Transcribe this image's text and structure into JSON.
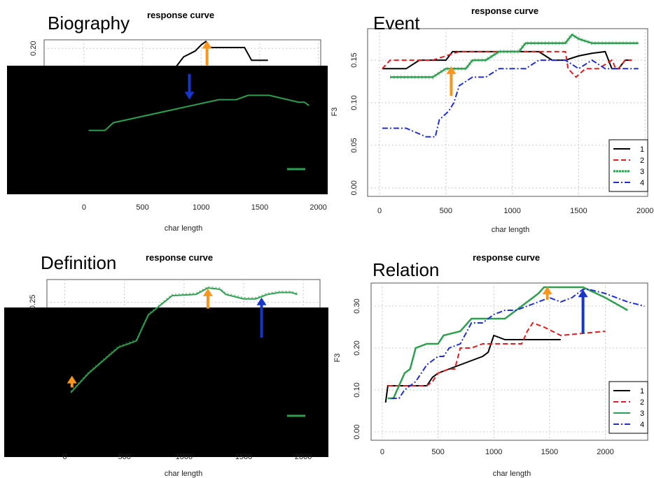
{
  "colors": {
    "s1": "#000000",
    "s2": "#e41a1c",
    "s3": "#2e9e4f",
    "s4": "#1f2fd6",
    "arrow_up": "#f7961d",
    "arrow_down": "#1736c9",
    "grid": "#c8c8c8",
    "occluder": "#000000"
  },
  "chart_data": [
    {
      "id": "biography",
      "type": "line",
      "big_label": "Biography",
      "title": "response curve",
      "xlabel": "char length",
      "ylabel": "",
      "xlim": [
        -340,
        2020
      ],
      "ylim": [
        0.03,
        0.21
      ],
      "xticks": [
        0,
        500,
        1000,
        1500,
        2000
      ],
      "yticks": [
        0.2
      ],
      "ytick_labels": [
        "0.20"
      ],
      "grid": true,
      "legend": "bottom-right",
      "occluded": true,
      "series": [
        {
          "key": "s1",
          "style": "solid",
          "width": 2,
          "x": [
            600,
            850,
            950,
            1000,
            1040,
            1080,
            1140,
            1220,
            1370,
            1430,
            1570
          ],
          "y": [
            0.145,
            0.19,
            0.197,
            0.204,
            0.208,
            0.201,
            0.201,
            0.201,
            0.201,
            0.186,
            0.186
          ]
        },
        {
          "key": "s3",
          "style": "solid",
          "width": 2,
          "x": [
            40,
            180,
            250,
            1150,
            1300,
            1400,
            1580,
            1830,
            1880,
            1920
          ],
          "y": [
            0.104,
            0.104,
            0.113,
            0.14,
            0.14,
            0.145,
            0.145,
            0.137,
            0.137,
            0.133
          ]
        }
      ],
      "arrows_up": [
        {
          "x": 1050,
          "y0": 0.18,
          "y1": 0.208
        }
      ],
      "arrows_down": [
        {
          "x": 900,
          "y0": 0.17,
          "y1": 0.141
        }
      ]
    },
    {
      "id": "event",
      "type": "line",
      "big_label": "Event",
      "title": "response curve",
      "xlabel": "char length",
      "ylabel": "F3",
      "xlim": [
        -90,
        2020
      ],
      "ylim": [
        -0.01,
        0.187
      ],
      "xticks": [
        0,
        500,
        1000,
        1500,
        2000
      ],
      "yticks": [
        0,
        0.05,
        0.1,
        0.15
      ],
      "ytick_labels": [
        "0.00",
        "0.05",
        "0.10",
        "0.15"
      ],
      "grid": true,
      "legend": "bottom-right",
      "legend_entries": [
        "1",
        "2",
        "3",
        "4"
      ],
      "occluded": false,
      "series": [
        {
          "key": "s1",
          "style": "solid",
          "width": 2,
          "x": [
            20,
            100,
            200,
            300,
            400,
            500,
            550,
            600,
            700,
            800,
            1000,
            1100,
            1200,
            1300,
            1400,
            1500,
            1600,
            1700,
            1750,
            1800,
            1850,
            1900
          ],
          "y": [
            0.14,
            0.14,
            0.14,
            0.15,
            0.15,
            0.15,
            0.16,
            0.16,
            0.16,
            0.16,
            0.16,
            0.16,
            0.16,
            0.15,
            0.15,
            0.155,
            0.158,
            0.16,
            0.14,
            0.14,
            0.15,
            0.15
          ]
        },
        {
          "key": "s2",
          "style": "dash",
          "width": 2,
          "x": [
            20,
            80,
            200,
            400,
            600,
            800,
            1000,
            1200,
            1400,
            1420,
            1480,
            1550,
            1650,
            1750,
            1780,
            1800,
            1850,
            1900
          ],
          "y": [
            0.14,
            0.15,
            0.15,
            0.15,
            0.16,
            0.16,
            0.16,
            0.16,
            0.16,
            0.14,
            0.13,
            0.14,
            0.14,
            0.15,
            0.14,
            0.14,
            0.15,
            0.15
          ]
        },
        {
          "key": "s3",
          "style": "ladder",
          "width": 2.5,
          "x": [
            80,
            200,
            300,
            400,
            500,
            550,
            650,
            700,
            800,
            900,
            1000,
            1050,
            1100,
            1200,
            1300,
            1400,
            1450,
            1500,
            1600,
            1700,
            1800,
            1950
          ],
          "y": [
            0.13,
            0.13,
            0.13,
            0.13,
            0.14,
            0.14,
            0.14,
            0.15,
            0.15,
            0.16,
            0.16,
            0.16,
            0.17,
            0.17,
            0.17,
            0.17,
            0.18,
            0.175,
            0.17,
            0.17,
            0.17,
            0.17
          ]
        },
        {
          "key": "s4",
          "style": "dashdot",
          "width": 2,
          "x": [
            20,
            100,
            200,
            350,
            420,
            450,
            520,
            560,
            600,
            700,
            800,
            900,
            1000,
            1100,
            1200,
            1300,
            1400,
            1500,
            1600,
            1700,
            1800,
            1950
          ],
          "y": [
            0.07,
            0.07,
            0.07,
            0.06,
            0.06,
            0.08,
            0.09,
            0.1,
            0.12,
            0.13,
            0.13,
            0.14,
            0.14,
            0.14,
            0.15,
            0.15,
            0.15,
            0.14,
            0.15,
            0.14,
            0.14,
            0.14
          ]
        }
      ],
      "arrows_up": [
        {
          "x": 540,
          "y0": 0.108,
          "y1": 0.142
        }
      ],
      "arrows_down": []
    },
    {
      "id": "definition",
      "type": "line",
      "big_label": "Definition",
      "title": "response curve",
      "xlabel": "char length",
      "ylabel": "",
      "xlim": [
        -150,
        2140
      ],
      "ylim": [
        0.02,
        0.285
      ],
      "xticks": [
        0,
        500,
        1000,
        1500,
        2000
      ],
      "yticks": [
        0.25
      ],
      "ytick_labels": [
        "0.25"
      ],
      "grid": true,
      "legend": "bottom-right",
      "occluded": true,
      "series": [
        {
          "key": "s3",
          "style": "solid",
          "width": 2,
          "x": [
            50,
            100,
            200,
            450,
            600,
            650,
            700,
            900,
            1100,
            1200,
            1300,
            1350,
            1500,
            1600,
            1700,
            1800,
            1900,
            1950
          ],
          "y": [
            0.11,
            0.12,
            0.14,
            0.18,
            0.19,
            0.21,
            0.23,
            0.26,
            0.262,
            0.272,
            0.27,
            0.262,
            0.255,
            0.255,
            0.262,
            0.265,
            0.265,
            0.262
          ]
        }
      ],
      "arrows_up": [
        {
          "x": 1200,
          "y0": 0.24,
          "y1": 0.27
        },
        {
          "x": 1650,
          "y0": 0.195,
          "y1": 0.256
        },
        {
          "x": 60,
          "y0": 0.118,
          "y1": 0.135
        }
      ],
      "arrows_down": []
    },
    {
      "id": "relation",
      "type": "line",
      "big_label": "Relation",
      "title": "response curve",
      "xlabel": "char length",
      "ylabel": "F3",
      "xlim": [
        -100,
        2380
      ],
      "ylim": [
        -0.02,
        0.355
      ],
      "xticks": [
        0,
        500,
        1000,
        1500,
        2000
      ],
      "yticks": [
        0,
        0.1,
        0.2,
        0.3
      ],
      "ytick_labels": [
        "0.00",
        "0.10",
        "0.20",
        "0.30"
      ],
      "grid": true,
      "legend": "bottom-right",
      "legend_entries": [
        "1",
        "2",
        "3",
        "4"
      ],
      "occluded": false,
      "series": [
        {
          "key": "s1",
          "style": "solid",
          "width": 2,
          "x": [
            30,
            50,
            100,
            200,
            300,
            400,
            450,
            500,
            600,
            700,
            800,
            900,
            950,
            1000,
            1050,
            1100,
            1150,
            1200,
            1300,
            1400,
            1500,
            1600
          ],
          "y": [
            0.07,
            0.11,
            0.11,
            0.11,
            0.11,
            0.11,
            0.13,
            0.14,
            0.15,
            0.16,
            0.17,
            0.18,
            0.19,
            0.23,
            0.225,
            0.22,
            0.22,
            0.22,
            0.22,
            0.22,
            0.22,
            0.22
          ]
        },
        {
          "key": "s2",
          "style": "dash",
          "width": 2,
          "x": [
            50,
            100,
            200,
            300,
            400,
            450,
            500,
            600,
            650,
            700,
            800,
            900,
            1000,
            1100,
            1200,
            1250,
            1300,
            1350,
            1450,
            1600,
            1800,
            2000
          ],
          "y": [
            0.11,
            0.11,
            0.11,
            0.11,
            0.11,
            0.12,
            0.14,
            0.15,
            0.15,
            0.2,
            0.2,
            0.21,
            0.21,
            0.21,
            0.21,
            0.21,
            0.24,
            0.26,
            0.25,
            0.23,
            0.235,
            0.24
          ]
        },
        {
          "key": "s3",
          "style": "solid",
          "width": 2.5,
          "x": [
            50,
            100,
            150,
            200,
            250,
            300,
            400,
            500,
            550,
            700,
            800,
            900,
            1000,
            1100,
            1200,
            1300,
            1400,
            1450,
            1500,
            1600,
            1700,
            1800,
            2000,
            2200
          ],
          "y": [
            0.08,
            0.08,
            0.11,
            0.14,
            0.15,
            0.2,
            0.21,
            0.21,
            0.23,
            0.24,
            0.27,
            0.27,
            0.27,
            0.27,
            0.29,
            0.31,
            0.33,
            0.345,
            0.345,
            0.345,
            0.345,
            0.345,
            0.32,
            0.29
          ]
        },
        {
          "key": "s4",
          "style": "dashdot",
          "width": 2,
          "x": [
            80,
            150,
            200,
            250,
            300,
            400,
            500,
            550,
            600,
            700,
            800,
            900,
            1000,
            1100,
            1200,
            1300,
            1400,
            1500,
            1600,
            1700,
            1800,
            1850,
            2000,
            2200,
            2350
          ],
          "y": [
            0.08,
            0.08,
            0.1,
            0.11,
            0.12,
            0.16,
            0.18,
            0.18,
            0.2,
            0.21,
            0.26,
            0.26,
            0.28,
            0.29,
            0.29,
            0.3,
            0.31,
            0.32,
            0.31,
            0.32,
            0.34,
            0.34,
            0.33,
            0.31,
            0.3
          ]
        }
      ],
      "arrows_up": [
        {
          "x": 1480,
          "y0": 0.315,
          "y1": 0.345
        },
        {
          "x": 1800,
          "y0": 0.235,
          "y1": 0.338
        }
      ],
      "arrows_down": []
    }
  ]
}
